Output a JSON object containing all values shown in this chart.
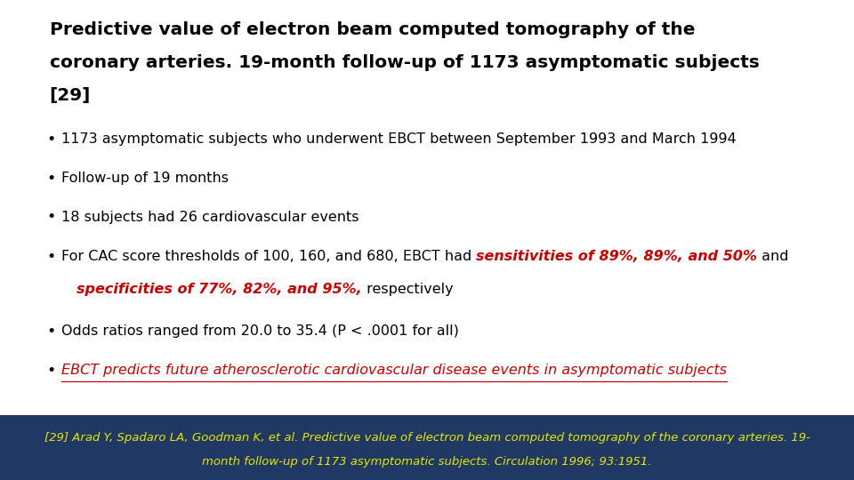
{
  "background_color": "#ffffff",
  "footer_background": "#1f3864",
  "title_lines": [
    "Predictive value of electron beam computed tomography of the",
    "coronary arteries. 19-month follow-up of 1173 asymptomatic subjects",
    "[29]"
  ],
  "title_color": "#000000",
  "title_fontsize": 14.5,
  "bullets": [
    {
      "parts": [
        {
          "text": "1173 asymptomatic subjects who underwent EBCT between September 1993 and March 1994",
          "color": "#000000",
          "bold": false,
          "italic": false,
          "underline": false
        }
      ],
      "indent": false
    },
    {
      "parts": [
        {
          "text": "Follow-up of 19 months",
          "color": "#000000",
          "bold": false,
          "italic": false,
          "underline": false
        }
      ],
      "indent": false
    },
    {
      "parts": [
        {
          "text": "18 subjects had 26 cardiovascular events",
          "color": "#000000",
          "bold": false,
          "italic": false,
          "underline": false
        }
      ],
      "indent": false
    },
    {
      "parts": [
        {
          "text": "For CAC score thresholds of 100, 160, and 680, EBCT had ",
          "color": "#000000",
          "bold": false,
          "italic": false,
          "underline": false
        },
        {
          "text": "sensitivities of 89%, 89%, and 50%",
          "color": "#cc0000",
          "bold": true,
          "italic": true,
          "underline": false
        },
        {
          "text": " and",
          "color": "#000000",
          "bold": false,
          "italic": false,
          "underline": false
        }
      ],
      "indent": false
    },
    {
      "parts": [
        {
          "text": "specificities of 77%, 82%, and 95%,",
          "color": "#cc0000",
          "bold": true,
          "italic": true,
          "underline": false
        },
        {
          "text": " respectively",
          "color": "#000000",
          "bold": false,
          "italic": false,
          "underline": false
        }
      ],
      "indent": true
    },
    {
      "parts": [
        {
          "text": "Odds ratios ranged from 20.0 to 35.4 (P < .0001 for all)",
          "color": "#000000",
          "bold": false,
          "italic": false,
          "underline": false
        }
      ],
      "indent": false
    },
    {
      "parts": [
        {
          "text": "EBCT predicts future atherosclerotic cardiovascular disease events in asymptomatic subjects",
          "color": "#cc0000",
          "bold": false,
          "italic": true,
          "underline": true
        }
      ],
      "indent": false
    }
  ],
  "bullet_fontsize": 11.5,
  "footer_text_line1": "[29] Arad Y, Spadaro LA, Goodman K, et al. Predictive value of electron beam computed tomography of the coronary arteries. 19-",
  "footer_text_line2": "month follow-up of 1173 asymptomatic subjects. Circulation 1996; 93:1951.",
  "footer_color": "#e8e800",
  "footer_fontsize": 9.5
}
